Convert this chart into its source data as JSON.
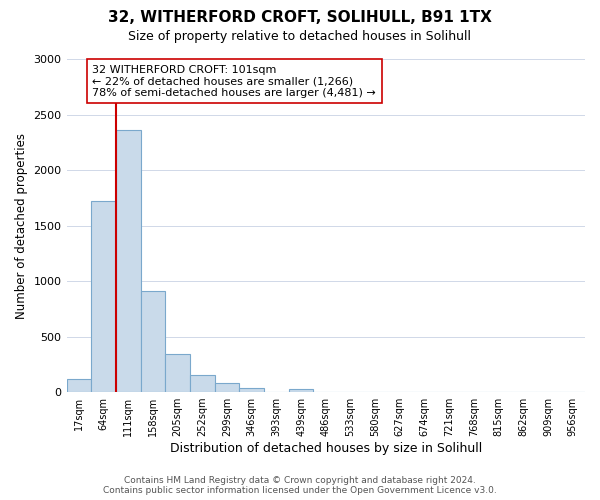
{
  "title": "32, WITHERFORD CROFT, SOLIHULL, B91 1TX",
  "subtitle": "Size of property relative to detached houses in Solihull",
  "xlabel": "Distribution of detached houses by size in Solihull",
  "ylabel": "Number of detached properties",
  "bar_heights": [
    120,
    1720,
    2360,
    910,
    340,
    155,
    80,
    40,
    0,
    30,
    0,
    0,
    0,
    0,
    0,
    0,
    0,
    0,
    0,
    0,
    0
  ],
  "bin_labels": [
    "17sqm",
    "64sqm",
    "111sqm",
    "158sqm",
    "205sqm",
    "252sqm",
    "299sqm",
    "346sqm",
    "393sqm",
    "439sqm",
    "486sqm",
    "533sqm",
    "580sqm",
    "627sqm",
    "674sqm",
    "721sqm",
    "768sqm",
    "815sqm",
    "862sqm",
    "909sqm",
    "956sqm"
  ],
  "bar_color": "#c9daea",
  "bar_edge_color": "#7aa8cc",
  "vline_color": "#cc0000",
  "vline_pos": 1.5,
  "annotation_text": "32 WITHERFORD CROFT: 101sqm\n← 22% of detached houses are smaller (1,266)\n78% of semi-detached houses are larger (4,481) →",
  "annotation_box_color": "#ffffff",
  "annotation_box_edge": "#cc0000",
  "ylim": [
    0,
    3000
  ],
  "yticks": [
    0,
    500,
    1000,
    1500,
    2000,
    2500,
    3000
  ],
  "footer_text": "Contains HM Land Registry data © Crown copyright and database right 2024.\nContains public sector information licensed under the Open Government Licence v3.0.",
  "background_color": "#ffffff",
  "grid_color": "#d0d8e8"
}
